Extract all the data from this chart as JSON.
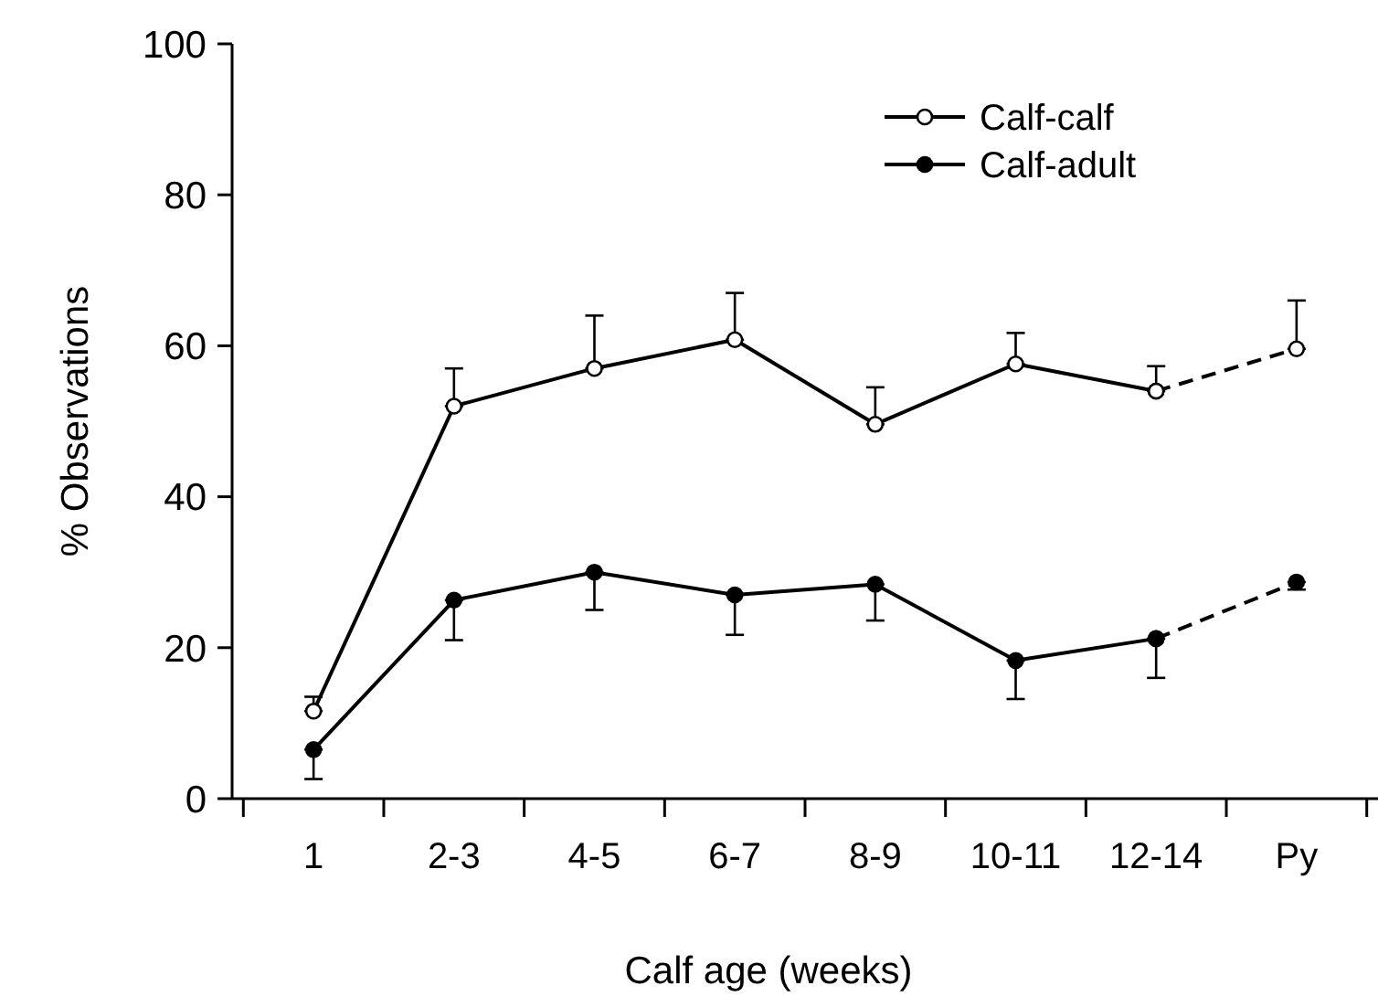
{
  "chart_data": {
    "type": "line",
    "xlabel": "Calf age (weeks)",
    "ylabel": "% Observations",
    "categories": [
      "1",
      "2-3",
      "4-5",
      "6-7",
      "8-9",
      "10-11",
      "12-14",
      "Py"
    ],
    "ylim": [
      0,
      100
    ],
    "yticks": [
      0,
      20,
      40,
      60,
      80,
      100
    ],
    "grid": false,
    "legend": "top right",
    "marker": "circle",
    "series": [
      {
        "name": "Calf-calf",
        "color": "#000000",
        "line_style": "solid",
        "values": [
          11.6,
          52,
          57,
          60.8,
          49.6,
          57.6,
          54,
          null
        ],
        "errors": [
          [
            11.6,
            13.5
          ],
          [
            52,
            57
          ],
          [
            57,
            64
          ],
          [
            60.8,
            67
          ],
          [
            49.6,
            54.5
          ],
          [
            57.6,
            61.7
          ],
          [
            54,
            57.3
          ],
          null
        ]
      },
      {
        "name": "Calf-adult",
        "color": "#000000",
        "line_style": "solid",
        "values": [
          6.5,
          26.3,
          30,
          27,
          28.4,
          18.3,
          21.2,
          null
        ],
        "errors": [
          [
            2.6,
            6.5
          ],
          [
            21,
            26.3
          ],
          [
            25,
            30
          ],
          [
            21.7,
            27
          ],
          [
            23.6,
            28.4
          ],
          [
            13.2,
            18.3
          ],
          [
            16,
            21.2
          ],
          null
        ]
      },
      {
        "color": "#000000",
        "line_style": "dashed",
        "values": [
          null,
          null,
          null,
          null,
          null,
          null,
          54,
          59.6
        ],
        "errors": [
          null,
          null,
          null,
          null,
          null,
          null,
          null,
          [
            59.6,
            66
          ]
        ]
      },
      {
        "color": "#000000",
        "line_style": "dashed",
        "values": [
          null,
          null,
          null,
          null,
          null,
          null,
          21.2,
          28.7
        ],
        "errors": [
          null,
          null,
          null,
          null,
          null,
          null,
          null,
          [
            27.7,
            28.7
          ]
        ]
      }
    ]
  }
}
